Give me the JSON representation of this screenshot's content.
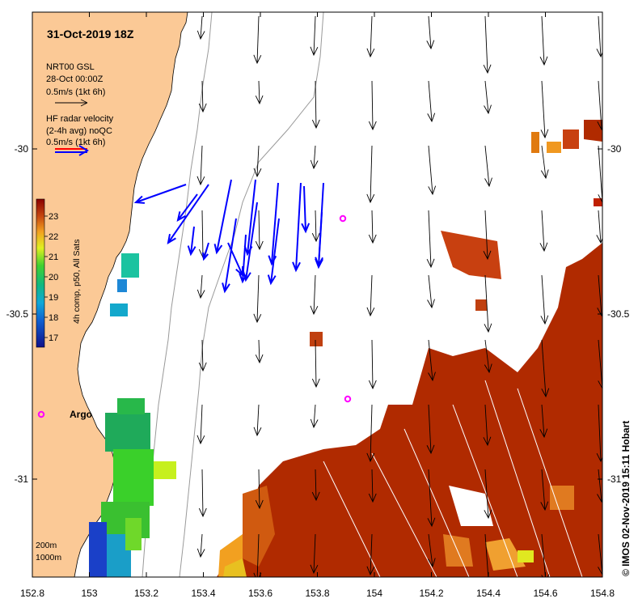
{
  "map": {
    "title": "31-Oct-2019 18Z",
    "credit": "© IMOS 02-Nov-2019 15:11 Hobart",
    "x_ticks": [
      "152.8",
      "153",
      "153.2",
      "153.4",
      "153.6",
      "153.8",
      "154",
      "154.2",
      "154.4",
      "154.6",
      "154.8"
    ],
    "y_ticks": [
      "-30",
      "-30.5",
      "-31"
    ],
    "model_legend": {
      "line1": "NRT00 GSL",
      "line2": "28-Oct 00:00Z",
      "line3": "0.5m/s (1kt 6h)"
    },
    "radar_legend": {
      "line1": "HF radar velocity",
      "line2": "(2-4h avg) noQC",
      "line3": "0.5m/s (1kt 6h)"
    },
    "colorbar": {
      "label": "4h comp, p50, All Sats",
      "ticks": [
        "23",
        "22",
        "21",
        "20",
        "19",
        "18",
        "17"
      ]
    },
    "argo_label": "Argo",
    "isobath_labels": [
      "200m",
      "1000m"
    ],
    "colors": {
      "land": "#fbc996",
      "radar_arrow": "#0000ff",
      "argo_marker": "#ff00ff",
      "sst_warm": "#b02a00"
    }
  }
}
